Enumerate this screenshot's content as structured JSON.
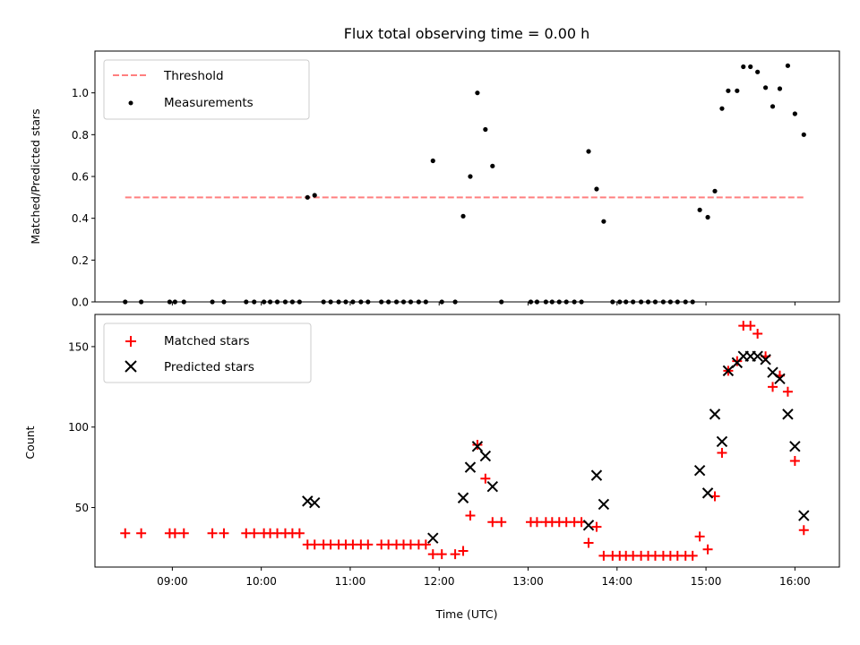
{
  "chart_data": [
    {
      "type": "scatter",
      "title": "Flux total observing time = 0.00 h",
      "xlabel": "",
      "ylabel": "Matched/Predicted stars",
      "xlim": [
        8.13,
        16.5
      ],
      "ylim": [
        0.0,
        1.2
      ],
      "yticks": [
        0.0,
        0.2,
        0.4,
        0.6,
        0.8,
        1.0
      ],
      "yticklabels": [
        "0.0",
        "0.2",
        "0.4",
        "0.6",
        "0.8",
        "1.0"
      ],
      "xticks": [
        9,
        10,
        11,
        12,
        13,
        14,
        15,
        16
      ],
      "legend": {
        "placement": "top-left",
        "entries": [
          "Threshold",
          "Measurements"
        ]
      },
      "threshold": {
        "name": "Threshold",
        "y": 0.5,
        "x_range": [
          8.47,
          16.12
        ],
        "color": "#ff7f7f",
        "style": "dashed"
      },
      "series": [
        {
          "name": "Measurements",
          "color": "#000000",
          "marker": "dot",
          "points": [
            [
              8.47,
              0
            ],
            [
              8.65,
              0
            ],
            [
              8.97,
              0
            ],
            [
              9.03,
              0
            ],
            [
              9.13,
              0
            ],
            [
              9.45,
              0
            ],
            [
              9.58,
              0
            ],
            [
              9.83,
              0
            ],
            [
              9.92,
              0
            ],
            [
              10.03,
              0
            ],
            [
              10.1,
              0
            ],
            [
              10.18,
              0
            ],
            [
              10.27,
              0
            ],
            [
              10.35,
              0
            ],
            [
              10.43,
              0
            ],
            [
              10.52,
              0.5
            ],
            [
              10.6,
              0.51
            ],
            [
              10.7,
              0
            ],
            [
              10.78,
              0
            ],
            [
              10.87,
              0
            ],
            [
              10.95,
              0
            ],
            [
              11.03,
              0
            ],
            [
              11.12,
              0
            ],
            [
              11.2,
              0
            ],
            [
              11.35,
              0
            ],
            [
              11.43,
              0
            ],
            [
              11.52,
              0
            ],
            [
              11.6,
              0
            ],
            [
              11.68,
              0
            ],
            [
              11.77,
              0
            ],
            [
              11.85,
              0
            ],
            [
              12.03,
              0
            ],
            [
              12.18,
              0
            ],
            [
              12.7,
              0
            ],
            [
              11.93,
              0.675
            ],
            [
              12.27,
              0.41
            ],
            [
              12.35,
              0.6
            ],
            [
              12.43,
              1.0
            ],
            [
              12.52,
              0.825
            ],
            [
              12.6,
              0.65
            ],
            [
              13.03,
              0
            ],
            [
              13.1,
              0
            ],
            [
              13.2,
              0
            ],
            [
              13.27,
              0
            ],
            [
              13.35,
              0
            ],
            [
              13.43,
              0
            ],
            [
              13.52,
              0
            ],
            [
              13.6,
              0
            ],
            [
              13.68,
              0.72
            ],
            [
              13.77,
              0.54
            ],
            [
              13.85,
              0.385
            ],
            [
              13.95,
              0
            ],
            [
              14.03,
              0
            ],
            [
              14.1,
              0
            ],
            [
              14.18,
              0
            ],
            [
              14.27,
              0
            ],
            [
              14.35,
              0
            ],
            [
              14.43,
              0
            ],
            [
              14.52,
              0
            ],
            [
              14.6,
              0
            ],
            [
              14.68,
              0
            ],
            [
              14.77,
              0
            ],
            [
              14.85,
              0
            ],
            [
              14.93,
              0.44
            ],
            [
              15.02,
              0.405
            ],
            [
              15.1,
              0.53
            ],
            [
              15.18,
              0.925
            ],
            [
              15.25,
              1.01
            ],
            [
              15.35,
              1.01
            ],
            [
              15.42,
              1.125
            ],
            [
              15.5,
              1.125
            ],
            [
              15.58,
              1.1
            ],
            [
              15.67,
              1.025
            ],
            [
              15.75,
              0.935
            ],
            [
              15.83,
              1.02
            ],
            [
              15.92,
              1.13
            ],
            [
              16.0,
              0.9
            ],
            [
              16.1,
              0.8
            ]
          ]
        }
      ]
    },
    {
      "type": "scatter",
      "title": "",
      "xlabel": "Time (UTC)",
      "ylabel": "Count",
      "xlim": [
        8.13,
        16.5
      ],
      "ylim": [
        13,
        170
      ],
      "yticks": [
        50,
        100,
        150
      ],
      "yticklabels": [
        "50",
        "100",
        "150"
      ],
      "xticks": [
        9,
        10,
        11,
        12,
        13,
        14,
        15,
        16
      ],
      "xticklabels": [
        "09:00",
        "10:00",
        "11:00",
        "12:00",
        "13:00",
        "14:00",
        "15:00",
        "16:00"
      ],
      "legend": {
        "placement": "top-left",
        "entries": [
          "Matched stars",
          "Predicted stars"
        ]
      },
      "series": [
        {
          "name": "Matched stars",
          "color": "#ff0000",
          "marker": "plus",
          "points": [
            [
              8.47,
              34
            ],
            [
              8.65,
              34
            ],
            [
              8.97,
              34
            ],
            [
              9.03,
              34
            ],
            [
              9.13,
              34
            ],
            [
              9.45,
              34
            ],
            [
              9.58,
              34
            ],
            [
              9.83,
              34
            ],
            [
              9.92,
              34
            ],
            [
              10.03,
              34
            ],
            [
              10.1,
              34
            ],
            [
              10.18,
              34
            ],
            [
              10.27,
              34
            ],
            [
              10.35,
              34
            ],
            [
              10.43,
              34
            ],
            [
              10.52,
              27
            ],
            [
              10.6,
              27
            ],
            [
              10.7,
              27
            ],
            [
              10.78,
              27
            ],
            [
              10.87,
              27
            ],
            [
              10.95,
              27
            ],
            [
              11.03,
              27
            ],
            [
              11.12,
              27
            ],
            [
              11.2,
              27
            ],
            [
              11.35,
              27
            ],
            [
              11.43,
              27
            ],
            [
              11.52,
              27
            ],
            [
              11.6,
              27
            ],
            [
              11.68,
              27
            ],
            [
              11.77,
              27
            ],
            [
              11.85,
              27
            ],
            [
              11.93,
              21
            ],
            [
              12.03,
              21
            ],
            [
              12.18,
              21
            ],
            [
              12.27,
              23
            ],
            [
              12.35,
              45
            ],
            [
              12.43,
              89
            ],
            [
              12.52,
              68
            ],
            [
              12.6,
              41
            ],
            [
              12.7,
              41
            ],
            [
              13.03,
              41
            ],
            [
              13.1,
              41
            ],
            [
              13.2,
              41
            ],
            [
              13.27,
              41
            ],
            [
              13.35,
              41
            ],
            [
              13.43,
              41
            ],
            [
              13.52,
              41
            ],
            [
              13.6,
              41
            ],
            [
              13.68,
              28
            ],
            [
              13.77,
              38
            ],
            [
              13.85,
              20
            ],
            [
              13.95,
              20
            ],
            [
              14.03,
              20
            ],
            [
              14.1,
              20
            ],
            [
              14.18,
              20
            ],
            [
              14.27,
              20
            ],
            [
              14.35,
              20
            ],
            [
              14.43,
              20
            ],
            [
              14.52,
              20
            ],
            [
              14.6,
              20
            ],
            [
              14.68,
              20
            ],
            [
              14.77,
              20
            ],
            [
              14.85,
              20
            ],
            [
              14.93,
              32
            ],
            [
              15.02,
              24
            ],
            [
              15.1,
              57
            ],
            [
              15.18,
              84
            ],
            [
              15.25,
              135
            ],
            [
              15.35,
              141
            ],
            [
              15.42,
              163
            ],
            [
              15.5,
              163
            ],
            [
              15.58,
              158
            ],
            [
              15.67,
              144
            ],
            [
              15.75,
              125
            ],
            [
              15.83,
              132
            ],
            [
              15.92,
              122
            ],
            [
              16.0,
              79
            ],
            [
              16.1,
              36
            ]
          ]
        },
        {
          "name": "Predicted stars",
          "color": "#000000",
          "marker": "x",
          "points": [
            [
              10.52,
              54
            ],
            [
              10.6,
              53
            ],
            [
              11.93,
              31
            ],
            [
              12.27,
              56
            ],
            [
              12.35,
              75
            ],
            [
              12.43,
              88
            ],
            [
              12.52,
              82
            ],
            [
              12.6,
              63
            ],
            [
              13.68,
              39
            ],
            [
              13.77,
              70
            ],
            [
              13.85,
              52
            ],
            [
              14.93,
              73
            ],
            [
              15.02,
              59
            ],
            [
              15.1,
              108
            ],
            [
              15.18,
              91
            ],
            [
              15.25,
              135
            ],
            [
              15.35,
              140
            ],
            [
              15.42,
              144
            ],
            [
              15.5,
              144
            ],
            [
              15.58,
              144
            ],
            [
              15.67,
              142
            ],
            [
              15.75,
              134
            ],
            [
              15.83,
              130
            ],
            [
              15.92,
              108
            ],
            [
              16.0,
              88
            ],
            [
              16.1,
              45
            ]
          ]
        }
      ]
    }
  ]
}
